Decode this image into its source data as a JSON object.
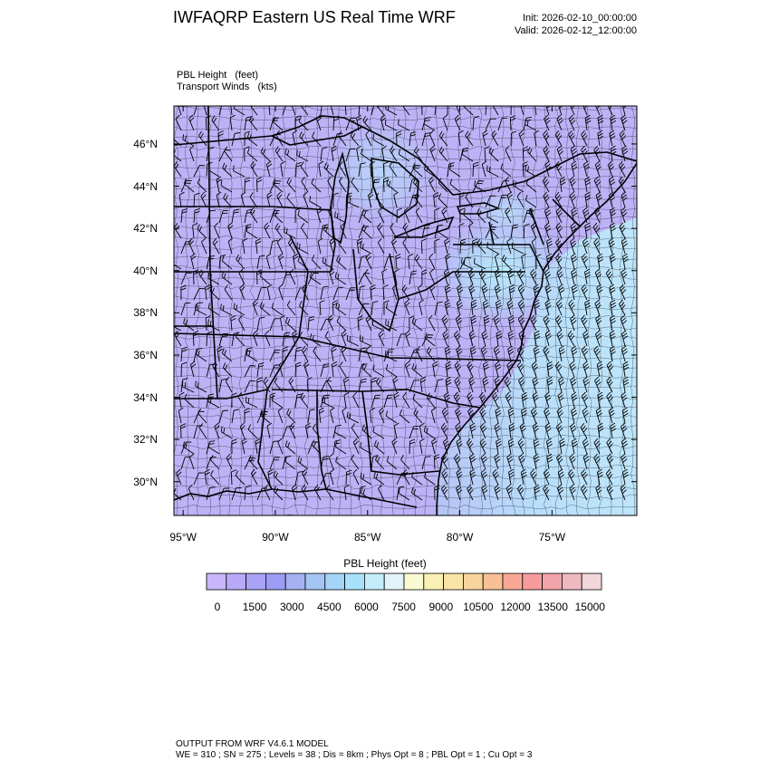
{
  "header": {
    "title": "IWFAQRP Eastern US Real Time WRF",
    "init": "Init: 2026-02-10_00:00:00",
    "valid": "Valid: 2026-02-12_12:00:00"
  },
  "field_labels": {
    "line1": "PBL Height   (feet)",
    "line2": "Transport Winds   (kts)"
  },
  "map": {
    "lat_labels": [
      "46°N",
      "44°N",
      "42°N",
      "40°N",
      "38°N",
      "36°N",
      "34°N",
      "32°N",
      "30°N"
    ],
    "lon_labels": [
      "95°W",
      "90°W",
      "85°W",
      "80°W",
      "75°W"
    ],
    "lat_values": [
      46,
      44,
      42,
      40,
      38,
      36,
      34,
      32,
      30
    ],
    "lon_values": [
      -95,
      -90,
      -85,
      -80,
      -75
    ],
    "lat_range": [
      28.4,
      47.8
    ],
    "lon_range": [
      -95.5,
      -70.4
    ],
    "base_fill": "#bcb2f6",
    "coast_color": "#000000"
  },
  "colorbar": {
    "title": "PBL Height  (feet)",
    "tick_labels": [
      "0",
      "1500",
      "3000",
      "4500",
      "6000",
      "7500",
      "9000",
      "10500",
      "12000",
      "13500",
      "15000"
    ],
    "colors": [
      "#c8b6fa",
      "#b8aaf8",
      "#aaa2f6",
      "#9c9cf4",
      "#a4b2f2",
      "#a4c4f4",
      "#a4d4f8",
      "#a8e2fa",
      "#c4ecfa",
      "#e2f4fa",
      "#fafad2",
      "#fbf0b4",
      "#fae4a6",
      "#f9d49c",
      "#f8c094",
      "#f7a894",
      "#f69c9c",
      "#f1a4aa",
      "#eebac0",
      "#f2d6da"
    ]
  },
  "footer": {
    "line1": "OUTPUT FROM WRF V4.6.1 MODEL",
    "line2": "WE = 310 ; SN = 275 ; Levels = 38 ; Dis = 8km ; Phys Opt = 8 ; PBL Opt = 1 ; Cu Opt = 3"
  }
}
